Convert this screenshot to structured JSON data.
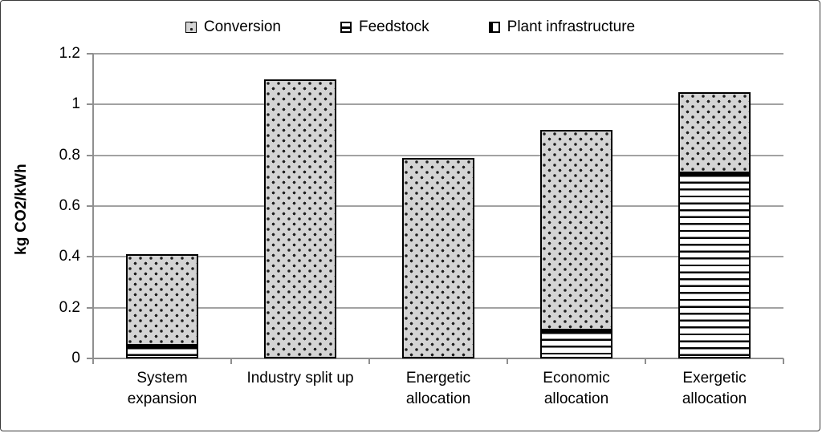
{
  "figure": {
    "background": "#ffffff",
    "border_color": "#3a3a3a"
  },
  "chart_data": {
    "type": "bar",
    "stacked": true,
    "title": "",
    "xlabel": "",
    "ylabel": "kg CO2/kWh",
    "ylim": [
      0,
      1.2
    ],
    "ytick_interval": 0.2,
    "ytick_labels": [
      "0",
      "0.2",
      "0.4",
      "0.6",
      "0.8",
      "1",
      "1.2"
    ],
    "grid": true,
    "legend_position": "top",
    "categories": [
      "System expansion",
      "Industry split up",
      "Energetic allocation",
      "Economic allocation",
      "Exergetic allocation"
    ],
    "category_label_lines": [
      [
        "System",
        "expansion"
      ],
      [
        "Industry split up"
      ],
      [
        "Energetic",
        "allocation"
      ],
      [
        "Economic",
        "allocation"
      ],
      [
        "Exergetic",
        "allocation"
      ]
    ],
    "series": [
      {
        "name": "Conversion",
        "pattern": "dots",
        "fill": "#d4d4d4",
        "values": [
          0.36,
          1.1,
          0.79,
          0.79,
          0.32
        ]
      },
      {
        "name": "Feedstock",
        "pattern": "hstripes",
        "fill": "#ffffff",
        "values": [
          0.05,
          0,
          0,
          0.11,
          0.73
        ]
      },
      {
        "name": "Plant infrastructure",
        "pattern": "vstripes",
        "fill": "#ffffff",
        "values": [
          0,
          0,
          0,
          0,
          0
        ]
      }
    ],
    "stack_order_bottom_to_top": [
      "Plant infrastructure",
      "Feedstock",
      "Conversion"
    ],
    "totals": [
      0.41,
      1.1,
      0.79,
      0.9,
      1.05
    ],
    "colors": {
      "gridline": "#a2a2a2",
      "axis": "#8f8f8f",
      "segment_border": "#000000",
      "text": "#000000"
    }
  }
}
